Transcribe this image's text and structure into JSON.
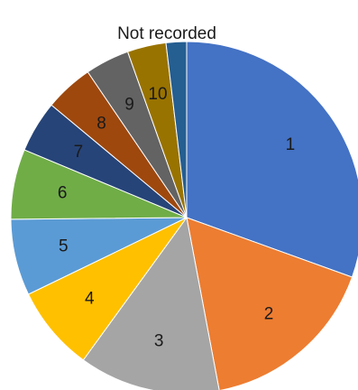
{
  "chart_data": {
    "type": "pie",
    "title": "",
    "start_angle_deg": 0,
    "direction": "clockwise",
    "legend": "none",
    "slices": [
      {
        "label": "1",
        "value": 30.8,
        "color": "#4472C4"
      },
      {
        "label": "2",
        "value": 16.7,
        "color": "#ED7D31"
      },
      {
        "label": "3",
        "value": 13.1,
        "color": "#A5A5A5"
      },
      {
        "label": "4",
        "value": 7.9,
        "color": "#FFC000"
      },
      {
        "label": "5",
        "value": 7.1,
        "color": "#5B9BD5"
      },
      {
        "label": "6",
        "value": 6.5,
        "color": "#70AD47"
      },
      {
        "label": "7",
        "value": 4.8,
        "color": "#264478"
      },
      {
        "label": "8",
        "value": 4.5,
        "color": "#9E480E"
      },
      {
        "label": "9",
        "value": 4.1,
        "color": "#636363"
      },
      {
        "label": "10",
        "value": 3.6,
        "color": "#997300"
      },
      {
        "label": "Not recorded",
        "value": 1.9,
        "color": "#255E91"
      }
    ]
  }
}
